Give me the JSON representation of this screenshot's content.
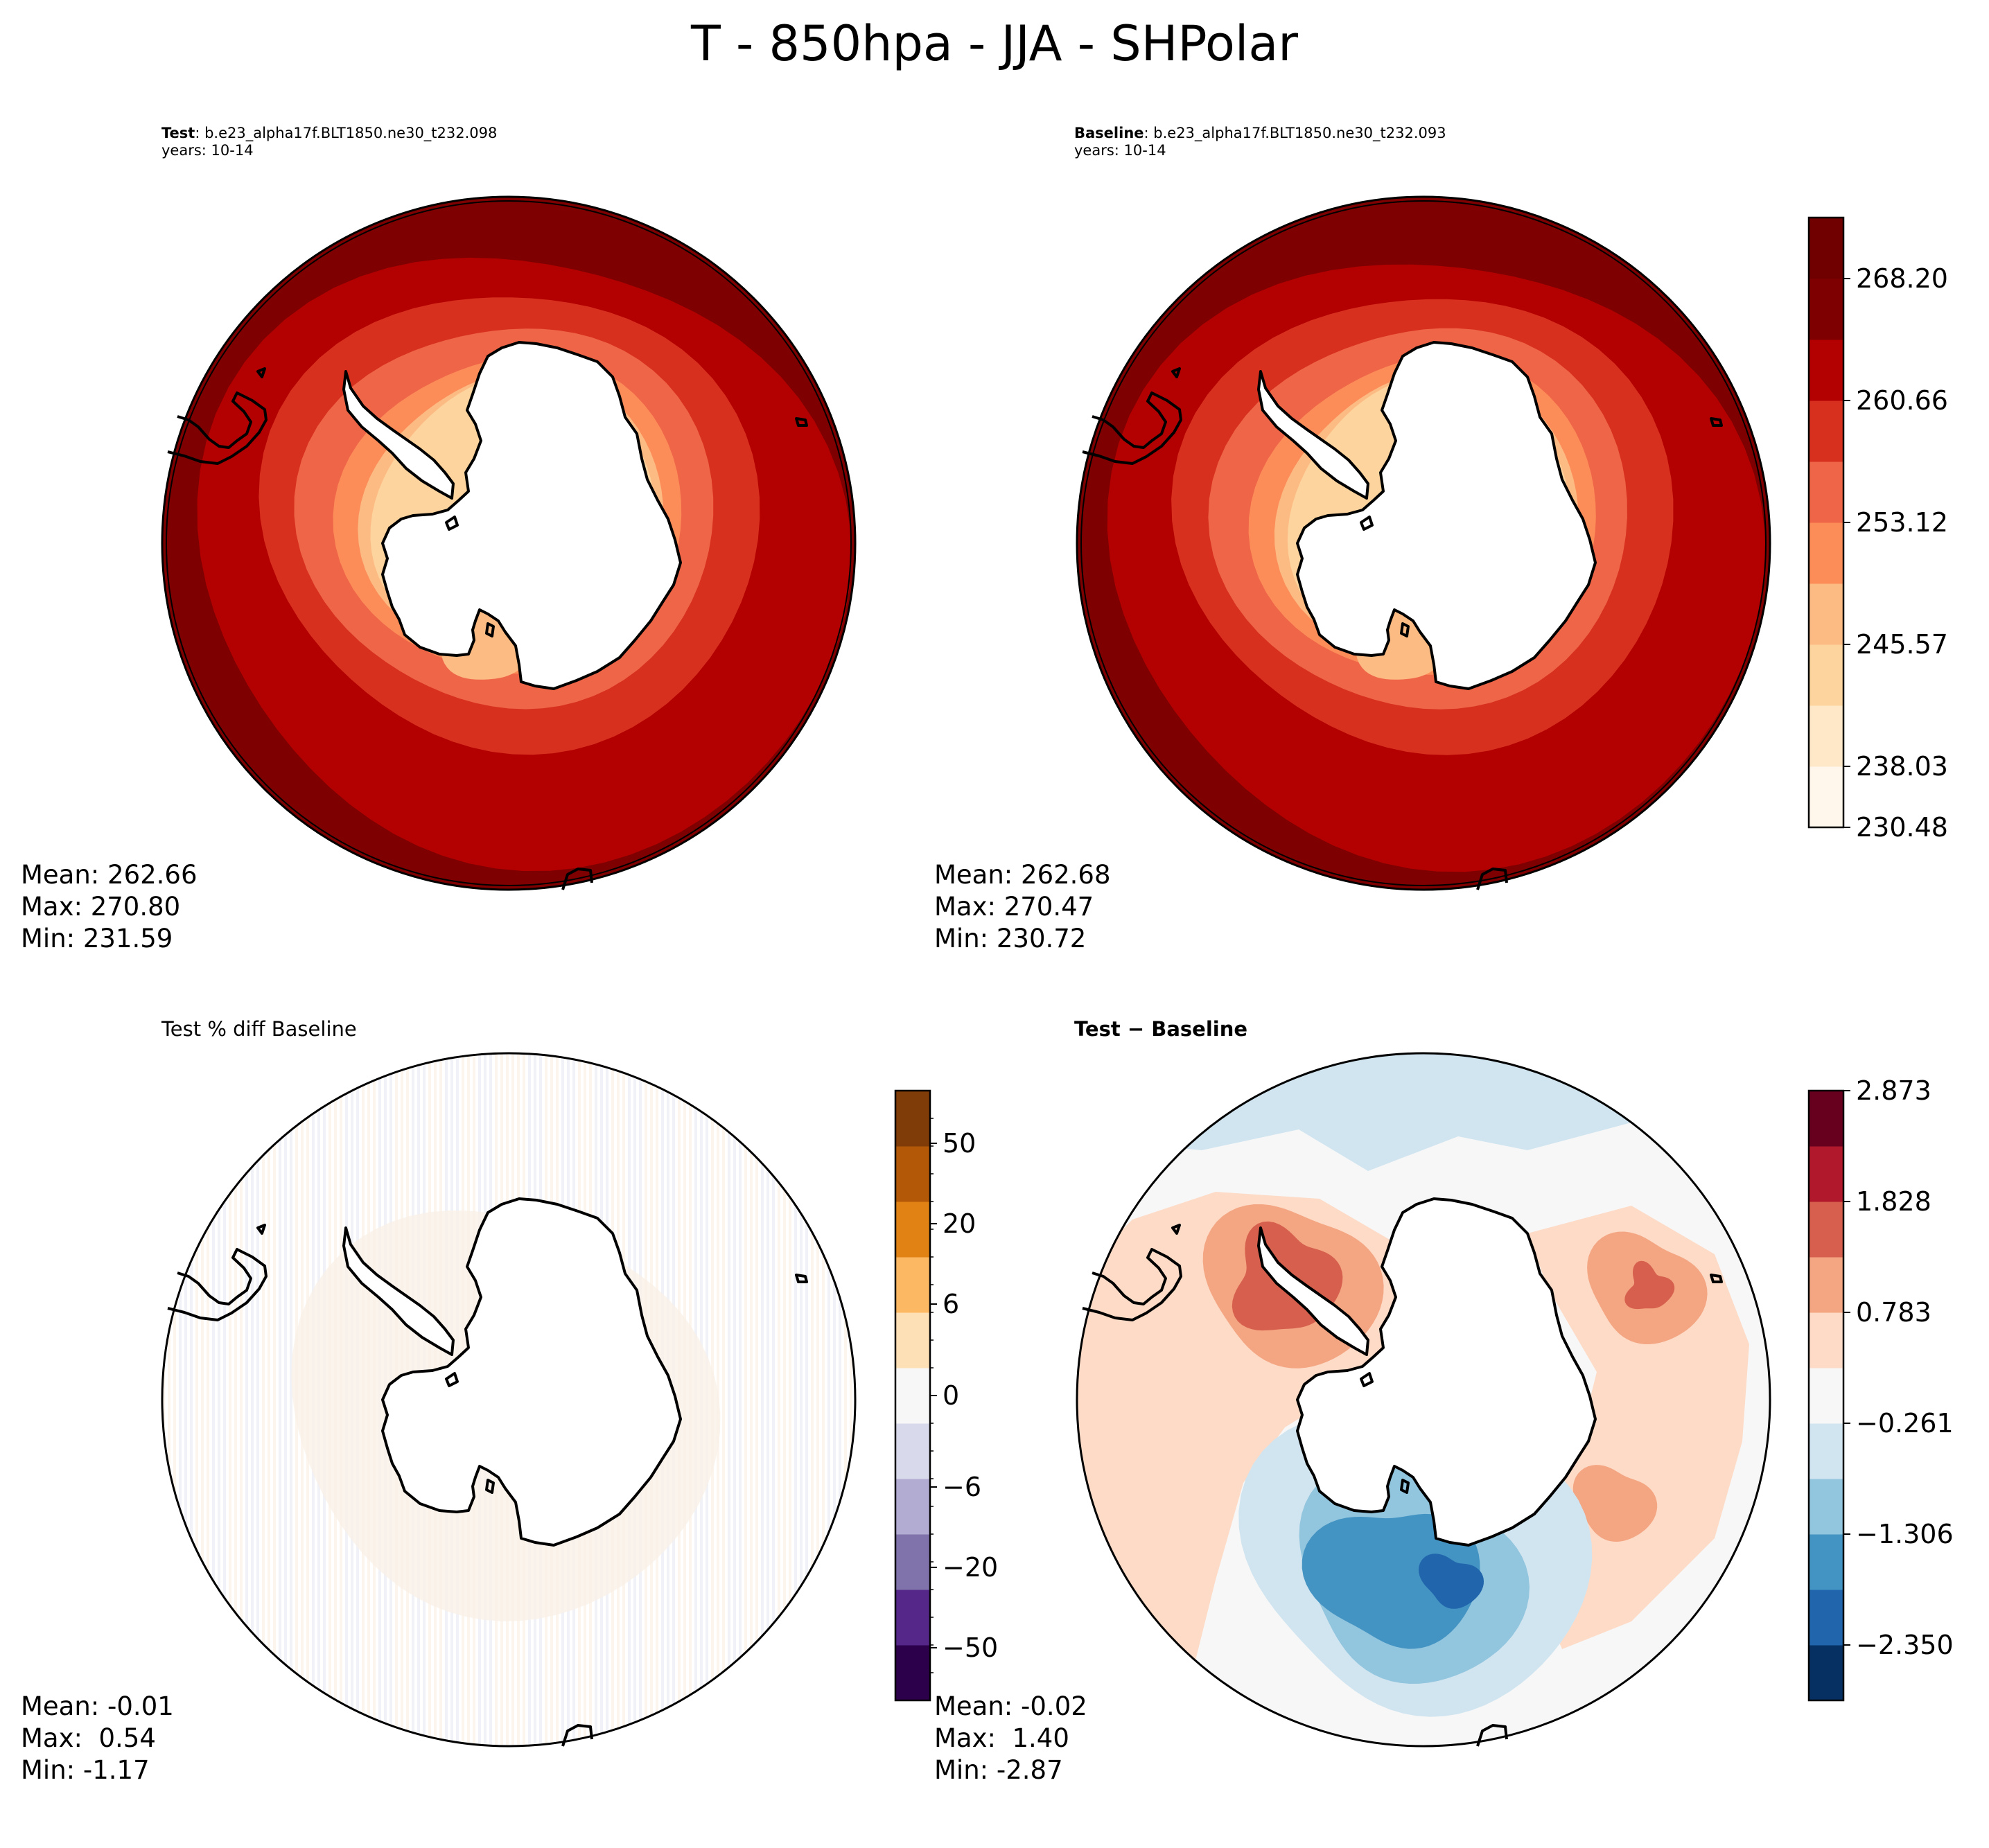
{
  "figure_title": "T - 850hpa - JJA - SHPolar",
  "colors": {
    "orrd": [
      "#fff7ec",
      "#fee8c8",
      "#fdd49e",
      "#fdbb84",
      "#fc8d59",
      "#ef6548",
      "#d7301f",
      "#b30000",
      "#7f0000"
    ],
    "rdbu": [
      "#053061",
      "#2166ac",
      "#4393c3",
      "#92c5de",
      "#d1e5f0",
      "#f7f7f7",
      "#fddbc7",
      "#f4a582",
      "#d6604d",
      "#b2182b",
      "#67001f"
    ],
    "puor": [
      "#2d004b",
      "#542788",
      "#8073ac",
      "#b2abd2",
      "#d8daeb",
      "#f7f7f7",
      "#fee0b6",
      "#fdb863",
      "#e08214",
      "#b35806",
      "#7f3b08"
    ]
  },
  "panels": {
    "test": {
      "label_bold": "Test",
      "label_rest": ": b.e23_alpha17f.BLT1850.ne30_t232.098",
      "years": "years: 10-14",
      "stats": [
        "Mean: 262.66",
        "Max: 270.80",
        "Min: 231.59"
      ]
    },
    "baseline": {
      "label_bold": "Baseline",
      "label_rest": ": b.e23_alpha17f.BLT1850.ne30_t232.093",
      "years": "years: 10-14",
      "stats": [
        "Mean: 262.68",
        "Max: 270.47",
        "Min: 230.72"
      ]
    },
    "pctdiff": {
      "title": "Test % diff Baseline",
      "stats": [
        "Mean: -0.01",
        "Max:  0.54",
        "Min: -1.17"
      ]
    },
    "diff": {
      "title": "Test − Baseline",
      "stats": [
        "Mean: -0.02",
        "Max:  1.40",
        "Min: -2.87"
      ]
    }
  },
  "colorbars": {
    "abs": {
      "ticks": [
        "268.20",
        "260.66",
        "253.12",
        "245.57",
        "238.03",
        "230.48"
      ],
      "range": [
        230.48,
        271.97
      ]
    },
    "pct": {
      "ticks": [
        "50",
        "20",
        "6",
        "0",
        "−6",
        "−20",
        "−50"
      ],
      "range": [
        -100,
        100
      ]
    },
    "diff": {
      "ticks": [
        "2.873",
        "1.828",
        "0.783",
        "−0.261",
        "−1.306",
        "−2.350"
      ],
      "range": [
        -2.873,
        2.873
      ]
    }
  }
}
